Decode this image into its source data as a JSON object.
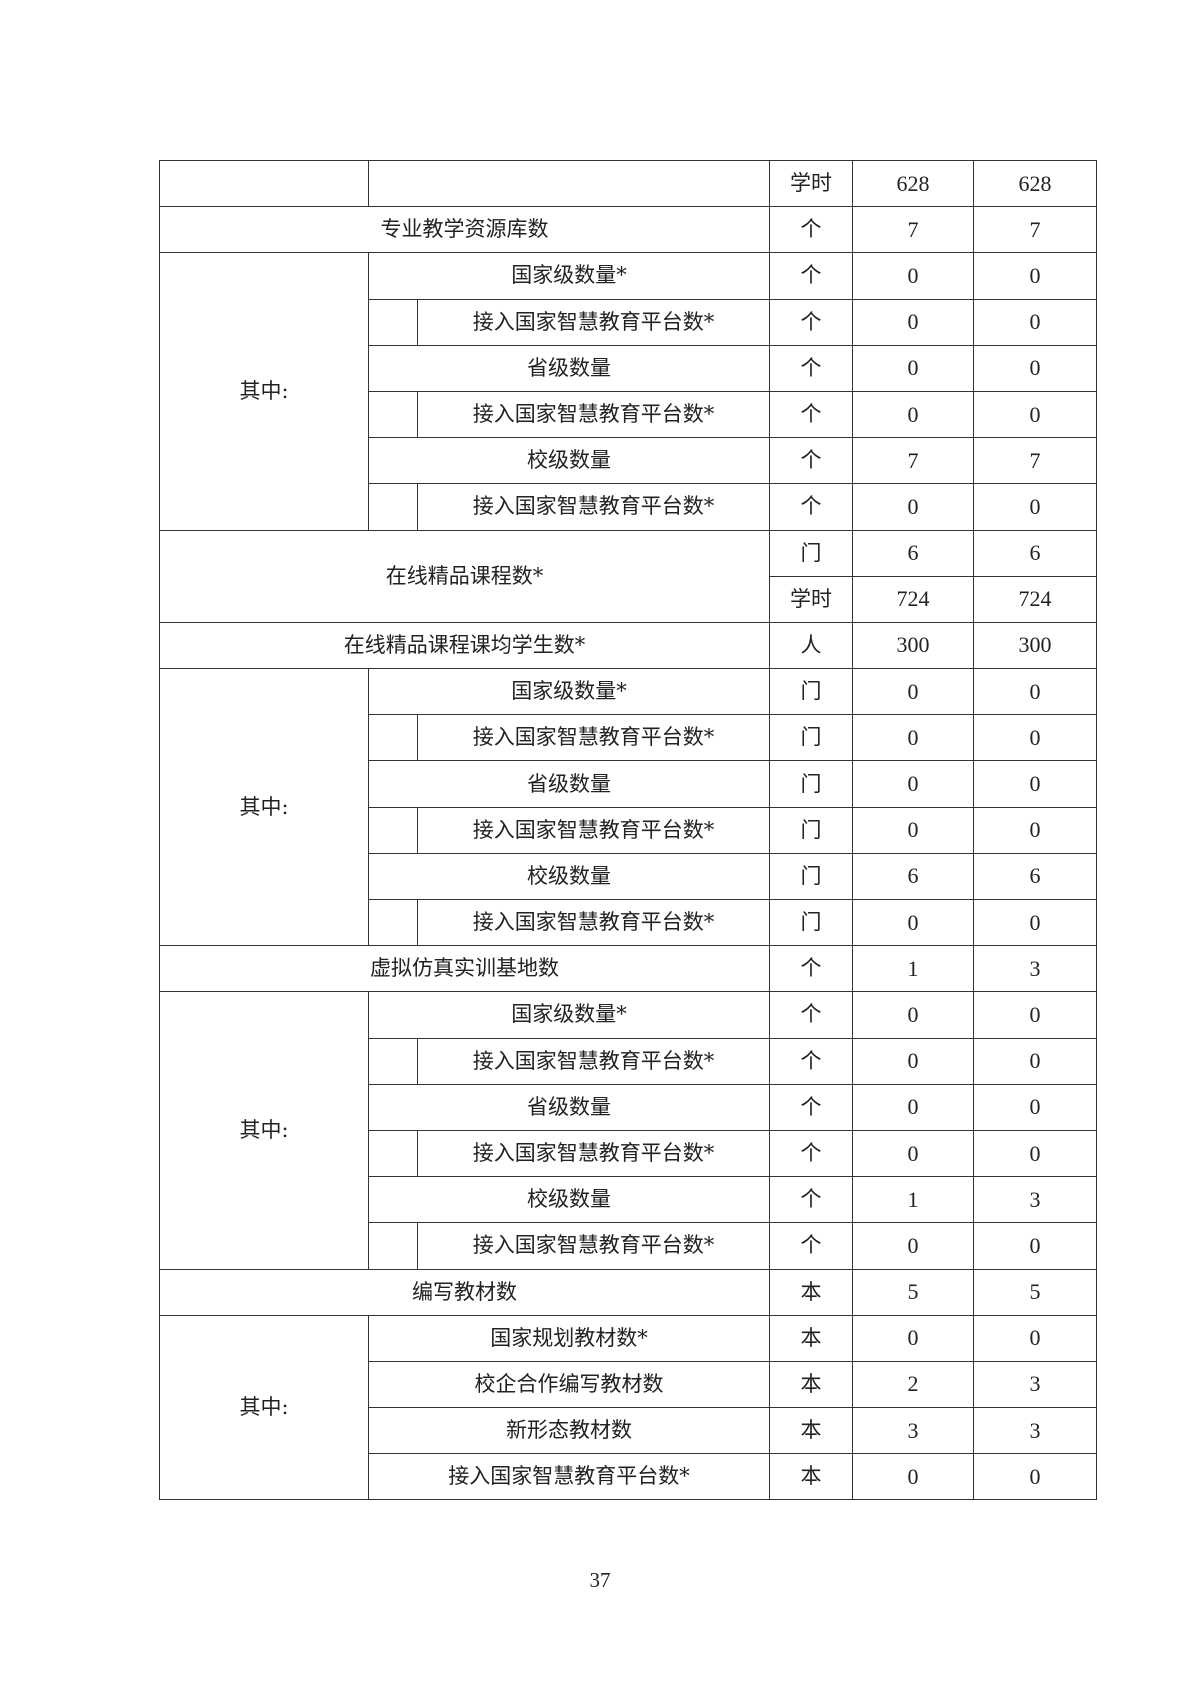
{
  "table": {
    "sections": [
      {
        "type": "cont",
        "rows": [
          {
            "unit": "学时",
            "v1": "628",
            "v2": "628"
          }
        ]
      },
      {
        "type": "item",
        "label": "专业教学资源库数",
        "rows": [
          {
            "unit": "个",
            "v1": "7",
            "v2": "7"
          }
        ]
      },
      {
        "type": "group",
        "label": "其中:",
        "items": [
          {
            "label": "国家级数量*",
            "sub": false,
            "unit": "个",
            "v1": "0",
            "v2": "0"
          },
          {
            "label": "接入国家智慧教育平台数*",
            "sub": true,
            "unit": "个",
            "v1": "0",
            "v2": "0"
          },
          {
            "label": "省级数量",
            "sub": false,
            "unit": "个",
            "v1": "0",
            "v2": "0"
          },
          {
            "label": "接入国家智慧教育平台数*",
            "sub": true,
            "unit": "个",
            "v1": "0",
            "v2": "0"
          },
          {
            "label": "校级数量",
            "sub": false,
            "unit": "个",
            "v1": "7",
            "v2": "7"
          },
          {
            "label": "接入国家智慧教育平台数*",
            "sub": true,
            "unit": "个",
            "v1": "0",
            "v2": "0"
          }
        ]
      },
      {
        "type": "item",
        "label": "在线精品课程数*",
        "rows": [
          {
            "unit": "门",
            "v1": "6",
            "v2": "6"
          },
          {
            "unit": "学时",
            "v1": "724",
            "v2": "724"
          }
        ]
      },
      {
        "type": "item",
        "label": "在线精品课程课均学生数*",
        "rows": [
          {
            "unit": "人",
            "v1": "300",
            "v2": "300"
          }
        ]
      },
      {
        "type": "group",
        "label": "其中:",
        "items": [
          {
            "label": "国家级数量*",
            "sub": false,
            "unit": "门",
            "v1": "0",
            "v2": "0"
          },
          {
            "label": "接入国家智慧教育平台数*",
            "sub": true,
            "unit": "门",
            "v1": "0",
            "v2": "0"
          },
          {
            "label": "省级数量",
            "sub": false,
            "unit": "门",
            "v1": "0",
            "v2": "0"
          },
          {
            "label": "接入国家智慧教育平台数*",
            "sub": true,
            "unit": "门",
            "v1": "0",
            "v2": "0"
          },
          {
            "label": "校级数量",
            "sub": false,
            "unit": "门",
            "v1": "6",
            "v2": "6"
          },
          {
            "label": "接入国家智慧教育平台数*",
            "sub": true,
            "unit": "门",
            "v1": "0",
            "v2": "0"
          }
        ]
      },
      {
        "type": "item",
        "label": "虚拟仿真实训基地数",
        "rows": [
          {
            "unit": "个",
            "v1": "1",
            "v2": "3"
          }
        ]
      },
      {
        "type": "group",
        "label": "其中:",
        "items": [
          {
            "label": "国家级数量*",
            "sub": false,
            "unit": "个",
            "v1": "0",
            "v2": "0"
          },
          {
            "label": "接入国家智慧教育平台数*",
            "sub": true,
            "unit": "个",
            "v1": "0",
            "v2": "0"
          },
          {
            "label": "省级数量",
            "sub": false,
            "unit": "个",
            "v1": "0",
            "v2": "0"
          },
          {
            "label": "接入国家智慧教育平台数*",
            "sub": true,
            "unit": "个",
            "v1": "0",
            "v2": "0"
          },
          {
            "label": "校级数量",
            "sub": false,
            "unit": "个",
            "v1": "1",
            "v2": "3"
          },
          {
            "label": "接入国家智慧教育平台数*",
            "sub": true,
            "unit": "个",
            "v1": "0",
            "v2": "0"
          }
        ]
      },
      {
        "type": "item",
        "label": "编写教材数",
        "rows": [
          {
            "unit": "本",
            "v1": "5",
            "v2": "5"
          }
        ]
      },
      {
        "type": "group",
        "label": "其中:",
        "items": [
          {
            "label": "国家规划教材数*",
            "sub": false,
            "unit": "本",
            "v1": "0",
            "v2": "0"
          },
          {
            "label": "校企合作编写教材数",
            "sub": false,
            "unit": "本",
            "v1": "2",
            "v2": "3"
          },
          {
            "label": "新形态教材数",
            "sub": false,
            "unit": "本",
            "v1": "3",
            "v2": "3"
          },
          {
            "label": "接入国家智慧教育平台数*",
            "sub": false,
            "unit": "本",
            "v1": "0",
            "v2": "0"
          }
        ]
      }
    ]
  },
  "page_number": "37"
}
